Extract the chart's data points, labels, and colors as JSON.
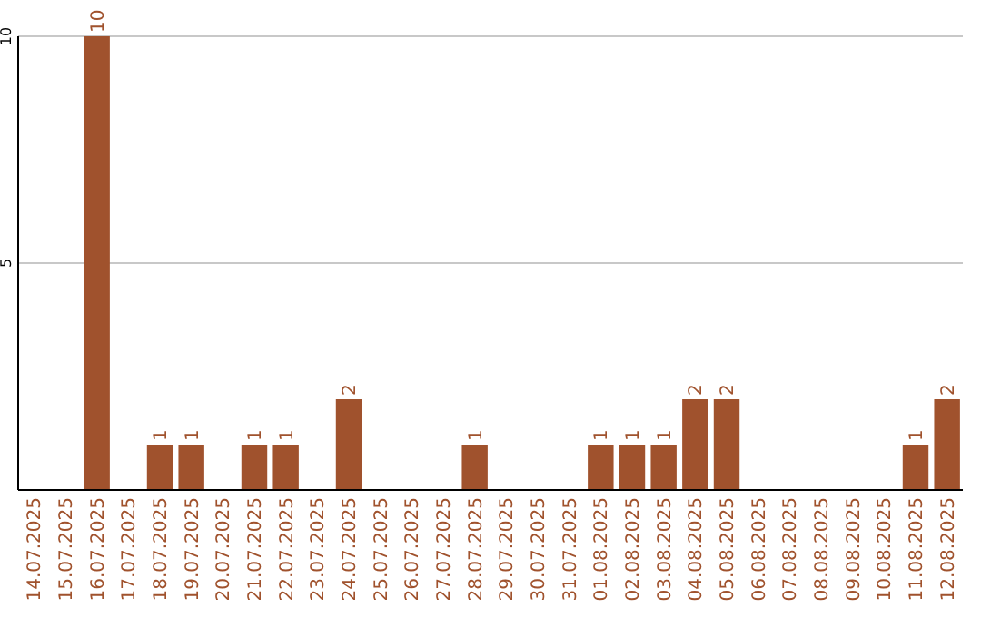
{
  "chart_data": {
    "type": "bar",
    "categories": [
      "14.07.2025",
      "15.07.2025",
      "16.07.2025",
      "17.07.2025",
      "18.07.2025",
      "19.07.2025",
      "20.07.2025",
      "21.07.2025",
      "22.07.2025",
      "23.07.2025",
      "24.07.2025",
      "25.07.2025",
      "26.07.2025",
      "27.07.2025",
      "28.07.2025",
      "29.07.2025",
      "30.07.2025",
      "31.07.2025",
      "01.08.2025",
      "02.08.2025",
      "03.08.2025",
      "04.08.2025",
      "05.08.2025",
      "06.08.2025",
      "07.08.2025",
      "08.08.2025",
      "09.08.2025",
      "10.08.2025",
      "11.08.2025",
      "12.08.2025"
    ],
    "values": [
      0,
      0,
      10,
      0,
      1,
      1,
      0,
      1,
      1,
      0,
      2,
      0,
      0,
      0,
      1,
      0,
      0,
      0,
      1,
      1,
      1,
      2,
      2,
      0,
      0,
      0,
      0,
      0,
      1,
      2
    ],
    "value_labels": [
      null,
      null,
      "10",
      null,
      "1",
      "1",
      null,
      "1",
      "1",
      null,
      "2",
      null,
      null,
      null,
      "1",
      null,
      null,
      null,
      "1",
      "1",
      "1",
      "2",
      "2",
      null,
      null,
      null,
      null,
      null,
      "1",
      "2"
    ],
    "color": "#a0522d",
    "ylim": [
      0,
      10
    ],
    "yticks": [
      5,
      10
    ],
    "grid": "y"
  }
}
